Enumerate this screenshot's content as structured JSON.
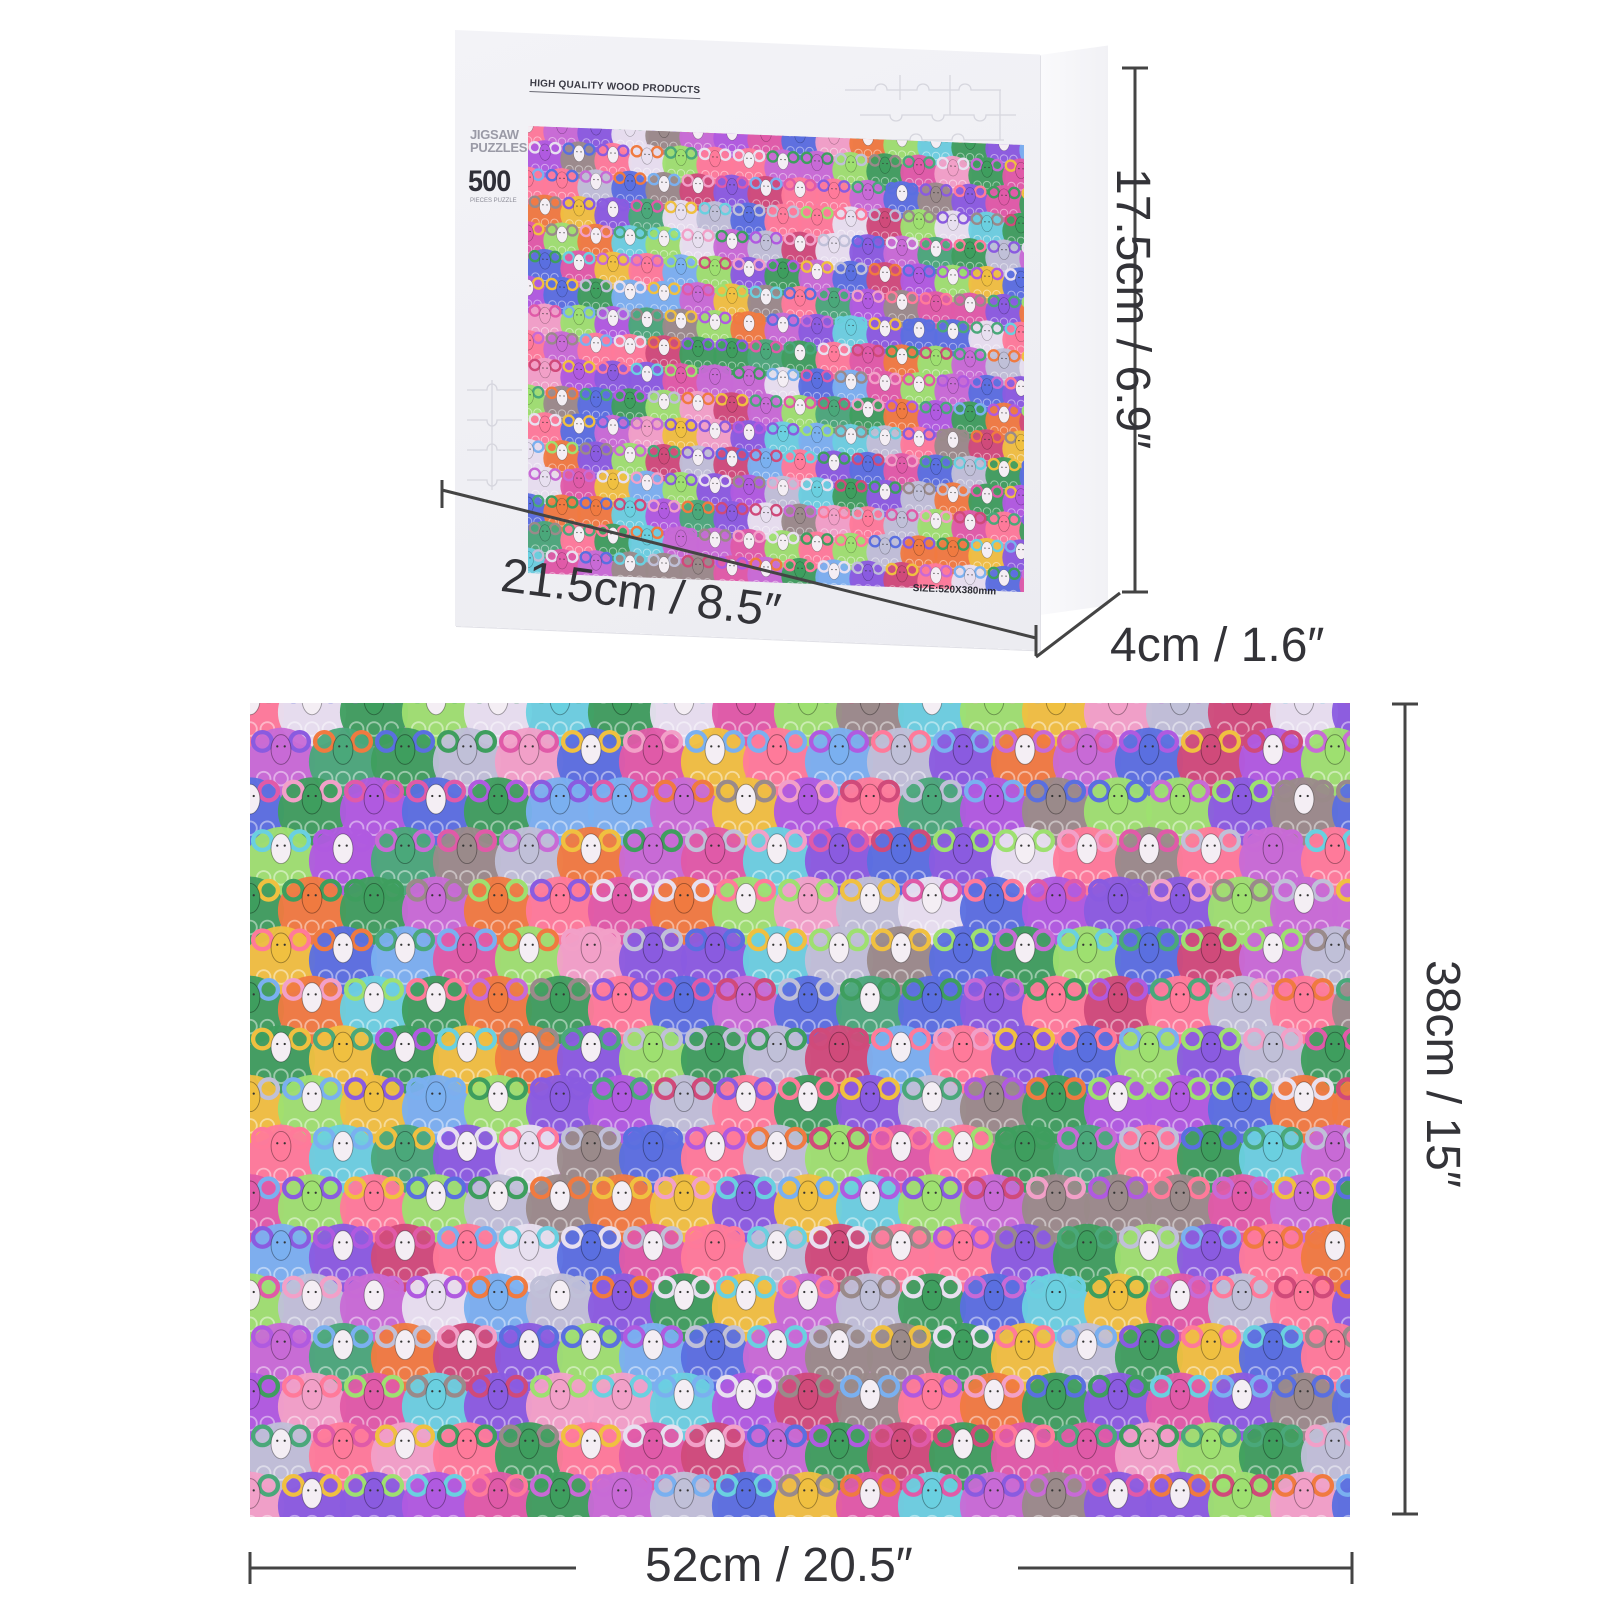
{
  "box": {
    "brand_text": "HIGH QUALITY WOOD PRODUCTS",
    "jigsaw_label": "JIGSAW PUZZLES",
    "pieces_count": "500",
    "pieces_sub": "PIECES PUZZLE",
    "size_text": "SIZE:520X380mm"
  },
  "dimensions": {
    "box_height": "17.5cm / 6.9″",
    "box_width": "21.5cm / 8.5″",
    "box_depth": "4cm / 1.6″",
    "puzzle_height": "38cm / 15″",
    "puzzle_width": "52cm / 20.5″"
  },
  "palette": [
    "#e05aa8",
    "#8a5be0",
    "#5a6fe0",
    "#f2a0c8",
    "#c86ad6",
    "#4aa87a",
    "#f0c040",
    "#e8e0f0",
    "#ff7a9a",
    "#6ad0e0",
    "#b05ae0",
    "#9a8a8a",
    "#f07a40",
    "#3e9e5e",
    "#d04a7a",
    "#7ab0f0",
    "#c0c0d8",
    "#9ee070"
  ]
}
